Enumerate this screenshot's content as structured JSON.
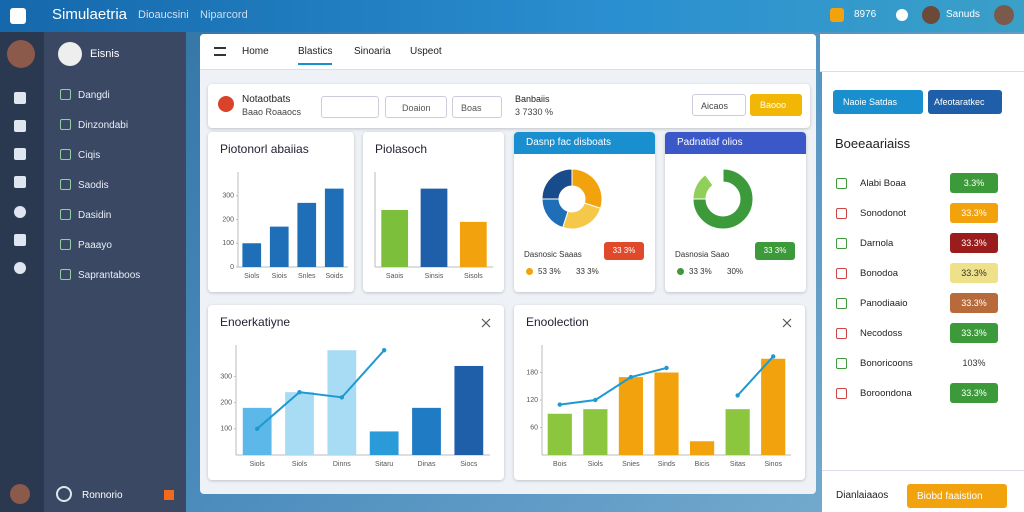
{
  "topbar": {
    "title": "Simulaetria",
    "links": [
      "Dioaucsini",
      "Niparcord"
    ],
    "counter": "8976",
    "user": "Sanuds"
  },
  "sidebar": {
    "profile": "Eisnis",
    "items": [
      "Dangdi",
      "Dinzondabi",
      "Ciqis",
      "Saodis",
      "Dasidin",
      "Paaayo",
      "Saprantaboos"
    ],
    "footer": "Ronnorio"
  },
  "tabs": [
    "Home",
    "Blastics",
    "Sinoaria",
    "Uspeot"
  ],
  "toolbar": {
    "title": "Notaotbats",
    "subtitle": "Baao Roaaocs",
    "search": "Doaion",
    "filter": "Boas",
    "summary_title": "Banbaiis",
    "summary_value": "3 7330 %",
    "buttons": [
      "Aicaos",
      "Baooo"
    ]
  },
  "bar_charts": [
    {
      "type": "bar",
      "title": "Piotonorl abaiias",
      "categories": [
        "Siols",
        "Siois",
        "Snles",
        "Soids"
      ],
      "values": [
        100,
        170,
        270,
        330
      ],
      "colors": [
        "#1f6fb8",
        "#1f6fb8",
        "#1f6fb8",
        "#1f6fb8"
      ],
      "ylim": [
        0,
        400
      ],
      "yticks": [
        0,
        100,
        200,
        300
      ]
    },
    {
      "type": "bar",
      "title": "Piolasoch",
      "categories": [
        "Saois",
        "Sinsis",
        "Sisols"
      ],
      "values": [
        240,
        330,
        190
      ],
      "colors": [
        "#7cbf3a",
        "#1f5ea8",
        "#f2a20c"
      ],
      "ylim": [
        0,
        400
      ],
      "yticks": []
    }
  ],
  "donuts": [
    {
      "type": "pie",
      "title": "Dasnp fac disboats",
      "header_color": "#1a8fd0",
      "values": [
        30,
        25,
        20,
        25
      ],
      "colors": [
        "#f2a20c",
        "#f5c84a",
        "#1f6fb8",
        "#174b8c"
      ],
      "legend": "Dasnosic Saaas",
      "badge": "33 3%",
      "badge_color": "#e04a2a",
      "stats": [
        "53 3%",
        "33 3%"
      ]
    },
    {
      "type": "pie",
      "title": "Padnatiaf olios",
      "header_color": "#3b58c8",
      "values": [
        75,
        15,
        10
      ],
      "colors": [
        "#3c9a3a",
        "#8fcf5a",
        "#ffffff"
      ],
      "legend": "Dasnosia Saao",
      "badge": "33 3%",
      "badge_color": "#3c9a3a",
      "stats": [
        "33 3%",
        "30%"
      ]
    }
  ],
  "combo_charts": [
    {
      "type": "combo",
      "title": "Enoerkatiyne",
      "categories": [
        "Siols",
        "Siols",
        "Dinns",
        "Sitaru",
        "Dinas",
        "Siocs"
      ],
      "values": [
        180,
        240,
        400,
        90,
        180,
        340
      ],
      "colors": [
        "#5bb8e8",
        "#a8dcf5",
        "#a8dcf5",
        "#2a9ad8",
        "#1f7cc4",
        "#1f5ea8"
      ],
      "line": [
        100,
        240,
        220,
        400,
        null,
        null
      ],
      "line_color": "#1f9ad0",
      "ylim": [
        0,
        420
      ],
      "yticks": [
        100,
        200,
        300
      ]
    },
    {
      "type": "combo",
      "title": "Enoolection",
      "categories": [
        "Bois",
        "Siols",
        "Snies",
        "Sinds",
        "Bicis",
        "Sitas",
        "Sinos"
      ],
      "values": [
        90,
        100,
        170,
        180,
        30,
        100,
        210
      ],
      "colors": [
        "#8cc63f",
        "#8cc63f",
        "#f2a20c",
        "#f2a20c",
        "#f2a20c",
        "#8cc63f",
        "#f2a20c"
      ],
      "line": [
        110,
        120,
        170,
        190,
        null,
        130,
        215
      ],
      "line_color": "#1f9ad0",
      "ylim": [
        0,
        240
      ],
      "yticks": [
        60,
        120,
        180
      ]
    }
  ],
  "side": {
    "buttons": [
      "Naoie Satdas",
      "Afeotaratkec"
    ],
    "title": "Boeeaariaiss",
    "items": [
      {
        "label": "Alabi Boaa",
        "badge": "3.3%",
        "color": "#3c9a3a"
      },
      {
        "label": "Sonodonot",
        "badge": "33.3%",
        "color": "#f2a20c"
      },
      {
        "label": "Darnola",
        "badge": "33.3%",
        "color": "#9b1c1c"
      },
      {
        "label": "Bonodoa",
        "badge": "33.3%",
        "color": "#efe08a"
      },
      {
        "label": "Panodiaaio",
        "badge": "33.3%",
        "color": "#b86a3a"
      },
      {
        "label": "Necodoss",
        "badge": "33.3%",
        "color": "#3c9a3a"
      },
      {
        "label": "Bonoricoons",
        "badge": "103%",
        "color": "#ffffff"
      },
      {
        "label": "Boroondona",
        "badge": "33.3%",
        "color": "#3c9a3a"
      }
    ],
    "footer": "Dianlaiaaos",
    "footer_button": "Biobd faaistion"
  }
}
